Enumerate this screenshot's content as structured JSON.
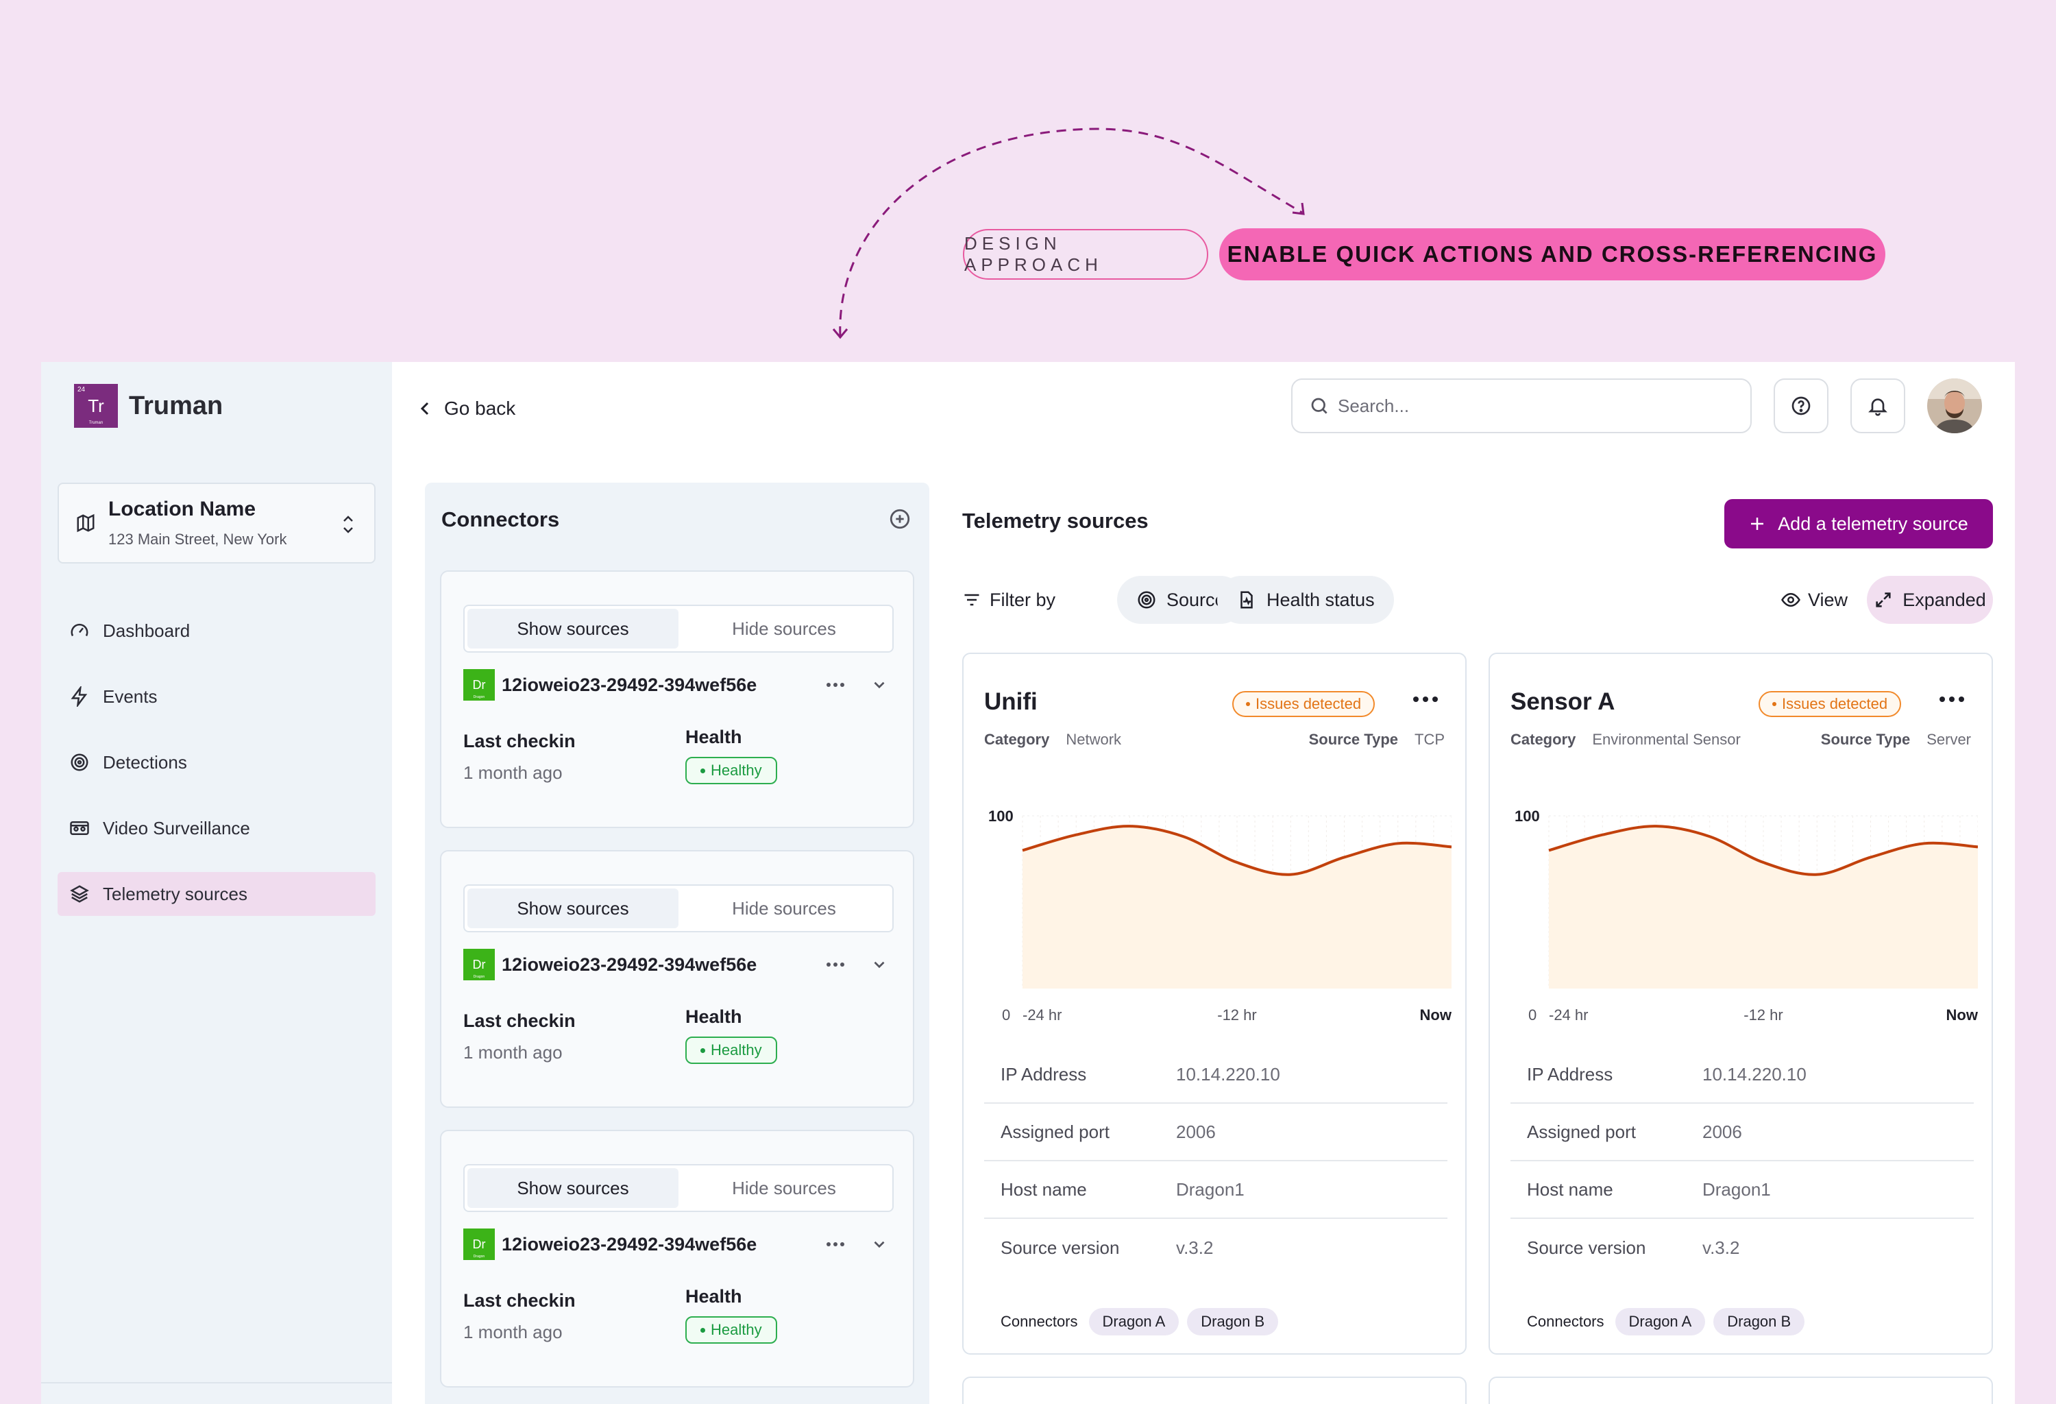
{
  "annotation": {
    "approach_label": "DESIGN APPROACH",
    "headline": "ENABLE QUICK ACTIONS AND CROSS-REFERENCING"
  },
  "brand": {
    "logo_text": "Tr",
    "logo_sup": "24",
    "logo_sub": "Truman",
    "name": "Truman"
  },
  "location": {
    "name": "Location Name",
    "address": "123 Main Street, New York"
  },
  "nav": [
    {
      "label": "Dashboard",
      "icon": "gauge-icon"
    },
    {
      "label": "Events",
      "icon": "lightning-icon"
    },
    {
      "label": "Detections",
      "icon": "target-icon"
    },
    {
      "label": "Video Surveillance",
      "icon": "video-icon"
    },
    {
      "label": "Telemetry sources",
      "icon": "layers-icon",
      "active": true
    }
  ],
  "topbar": {
    "go_back": "Go back",
    "search_placeholder": "Search..."
  },
  "connectors": {
    "title": "Connectors",
    "cards": [
      {
        "show": "Show sources",
        "hide": "Hide sources",
        "badge": "Dr",
        "badge_sub": "Dragon",
        "id": "12ioweio23-29492-394wef56e",
        "last_checkin_label": "Last checkin",
        "last_checkin": "1 month ago",
        "health_label": "Health",
        "health": "Healthy"
      },
      {
        "show": "Show sources",
        "hide": "Hide sources",
        "badge": "Dr",
        "badge_sub": "Dragon",
        "id": "12ioweio23-29492-394wef56e",
        "last_checkin_label": "Last checkin",
        "last_checkin": "1 month ago",
        "health_label": "Health",
        "health": "Healthy"
      },
      {
        "show": "Show sources",
        "hide": "Hide sources",
        "badge": "Dr",
        "badge_sub": "Dragon",
        "id": "12ioweio23-29492-394wef56e",
        "last_checkin_label": "Last checkin",
        "last_checkin": "1 month ago",
        "health_label": "Health",
        "health": "Healthy"
      }
    ]
  },
  "telemetry": {
    "title": "Telemetry sources",
    "add_button": "Add a telemetry source",
    "filter_label": "Filter by",
    "filter_source": "Source",
    "filter_health": "Health status",
    "view_label": "View",
    "view_mode": "Expanded",
    "cards": [
      {
        "name": "Unifi",
        "status": "Issues detected",
        "category_label": "Category",
        "category": "Network",
        "type_label": "Source Type",
        "type": "TCP",
        "props": [
          {
            "k": "IP Address",
            "v": "10.14.220.10"
          },
          {
            "k": "Assigned port",
            "v": "2006"
          },
          {
            "k": "Host name",
            "v": "Dragon1"
          },
          {
            "k": "Source version",
            "v": "v.3.2"
          }
        ],
        "connectors_label": "Connectors",
        "connectors": [
          "Dragon A",
          "Dragon B"
        ]
      },
      {
        "name": "Sensor A",
        "status": "Issues detected",
        "category_label": "Category",
        "category": "Environmental Sensor",
        "type_label": "Source Type",
        "type": "Server",
        "props": [
          {
            "k": "IP Address",
            "v": "10.14.220.10"
          },
          {
            "k": "Assigned port",
            "v": "2006"
          },
          {
            "k": "Host name",
            "v": "Dragon1"
          },
          {
            "k": "Source version",
            "v": "v.3.2"
          }
        ],
        "connectors_label": "Connectors",
        "connectors": [
          "Dragon A",
          "Dragon B"
        ]
      }
    ]
  },
  "chart_data": [
    {
      "type": "area",
      "x": [
        -24,
        -21,
        -18,
        -15,
        -12,
        -9,
        -6,
        -3,
        0
      ],
      "xticks": [
        "-24 hr",
        "-12 hr",
        "Now"
      ],
      "y": [
        80,
        89,
        94,
        88,
        73,
        66,
        76,
        84,
        82
      ],
      "ymin_label": "0",
      "ymax_label": "100",
      "ylim": [
        0,
        100
      ],
      "line_color": "#c2410c",
      "fill_color": "#fff4e6"
    },
    {
      "type": "area",
      "x": [
        -24,
        -21,
        -18,
        -15,
        -12,
        -9,
        -6,
        -3,
        0
      ],
      "xticks": [
        "-24 hr",
        "-12 hr",
        "Now"
      ],
      "y": [
        80,
        89,
        94,
        88,
        73,
        66,
        76,
        84,
        82
      ],
      "ymin_label": "0",
      "ymax_label": "100",
      "ylim": [
        0,
        100
      ],
      "line_color": "#c2410c",
      "fill_color": "#fff4e6"
    }
  ]
}
